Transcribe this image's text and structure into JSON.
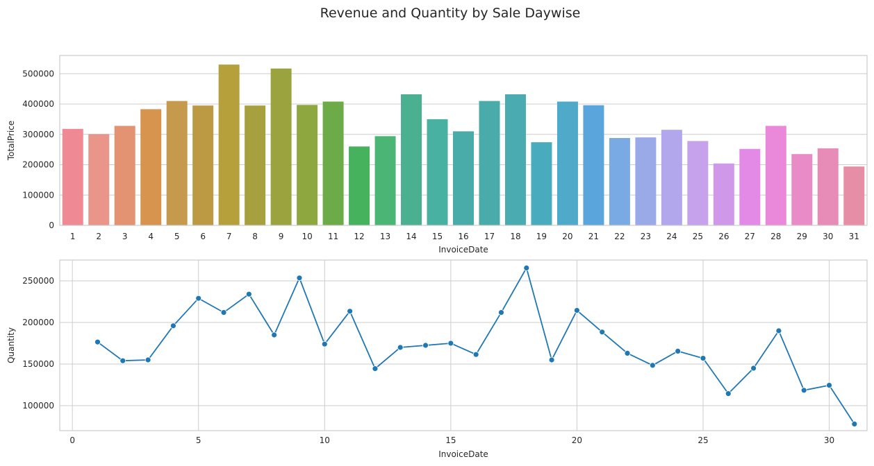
{
  "figure": {
    "title": "Revenue and Quantity by Sale Daywise"
  },
  "chart_data": [
    {
      "type": "bar",
      "xlabel": "InvoiceDate",
      "ylabel": "TotalPrice",
      "ylim": [
        0,
        560000
      ],
      "yticks": [
        0,
        100000,
        200000,
        300000,
        400000,
        500000
      ],
      "grid": "horizontal",
      "categories": [
        "1",
        "2",
        "3",
        "4",
        "5",
        "6",
        "7",
        "8",
        "9",
        "10",
        "11",
        "12",
        "13",
        "14",
        "15",
        "16",
        "17",
        "18",
        "19",
        "20",
        "21",
        "22",
        "23",
        "24",
        "25",
        "26",
        "27",
        "28",
        "29",
        "30",
        "31"
      ],
      "values": [
        318000,
        301000,
        328000,
        383000,
        410000,
        395000,
        530000,
        395000,
        517000,
        397000,
        408000,
        260000,
        294000,
        432000,
        350000,
        310000,
        410000,
        432000,
        274000,
        408000,
        396000,
        288000,
        290000,
        315000,
        278000,
        204000,
        252000,
        328000,
        235000,
        254000,
        194000
      ],
      "colors": [
        "#ef8a95",
        "#ea958a",
        "#e39371",
        "#d6944f",
        "#c69a4c",
        "#bc9a43",
        "#b5a03c",
        "#a7a03e",
        "#9aa33e",
        "#8fa73f",
        "#6cab47",
        "#47b25d",
        "#4ab575",
        "#4ab090",
        "#49b1a2",
        "#4aaca8",
        "#4aacaa",
        "#4aabb1",
        "#49abbe",
        "#4fa9c8",
        "#5aa5db",
        "#7aaae3",
        "#9aa9e7",
        "#b2a6ed",
        "#c6a2ec",
        "#cf98e8",
        "#e28ae6",
        "#ea88d9",
        "#e98bc6",
        "#e78cb6",
        "#e58ea6"
      ]
    },
    {
      "type": "line",
      "xlabel": "InvoiceDate",
      "ylabel": "Quantity",
      "xlim": [
        -0.5,
        31.5
      ],
      "ylim": [
        70000,
        275000
      ],
      "xticks": [
        0,
        5,
        10,
        15,
        20,
        25,
        30
      ],
      "yticks": [
        100000,
        150000,
        200000,
        250000
      ],
      "grid": "both",
      "color": "#1f77b4",
      "marker": "circle",
      "x": [
        1,
        2,
        3,
        4,
        5,
        6,
        7,
        8,
        9,
        10,
        11,
        12,
        13,
        14,
        15,
        16,
        17,
        18,
        19,
        20,
        21,
        22,
        23,
        24,
        25,
        26,
        27,
        28,
        29,
        30,
        31
      ],
      "y": [
        176500,
        154000,
        155000,
        196000,
        229000,
        212000,
        234000,
        185000,
        253500,
        174000,
        213500,
        144500,
        170000,
        172500,
        175000,
        161500,
        212000,
        265500,
        155000,
        214500,
        188500,
        163000,
        148500,
        165500,
        157000,
        114500,
        145000,
        190000,
        118500,
        124500,
        78000
      ]
    }
  ]
}
